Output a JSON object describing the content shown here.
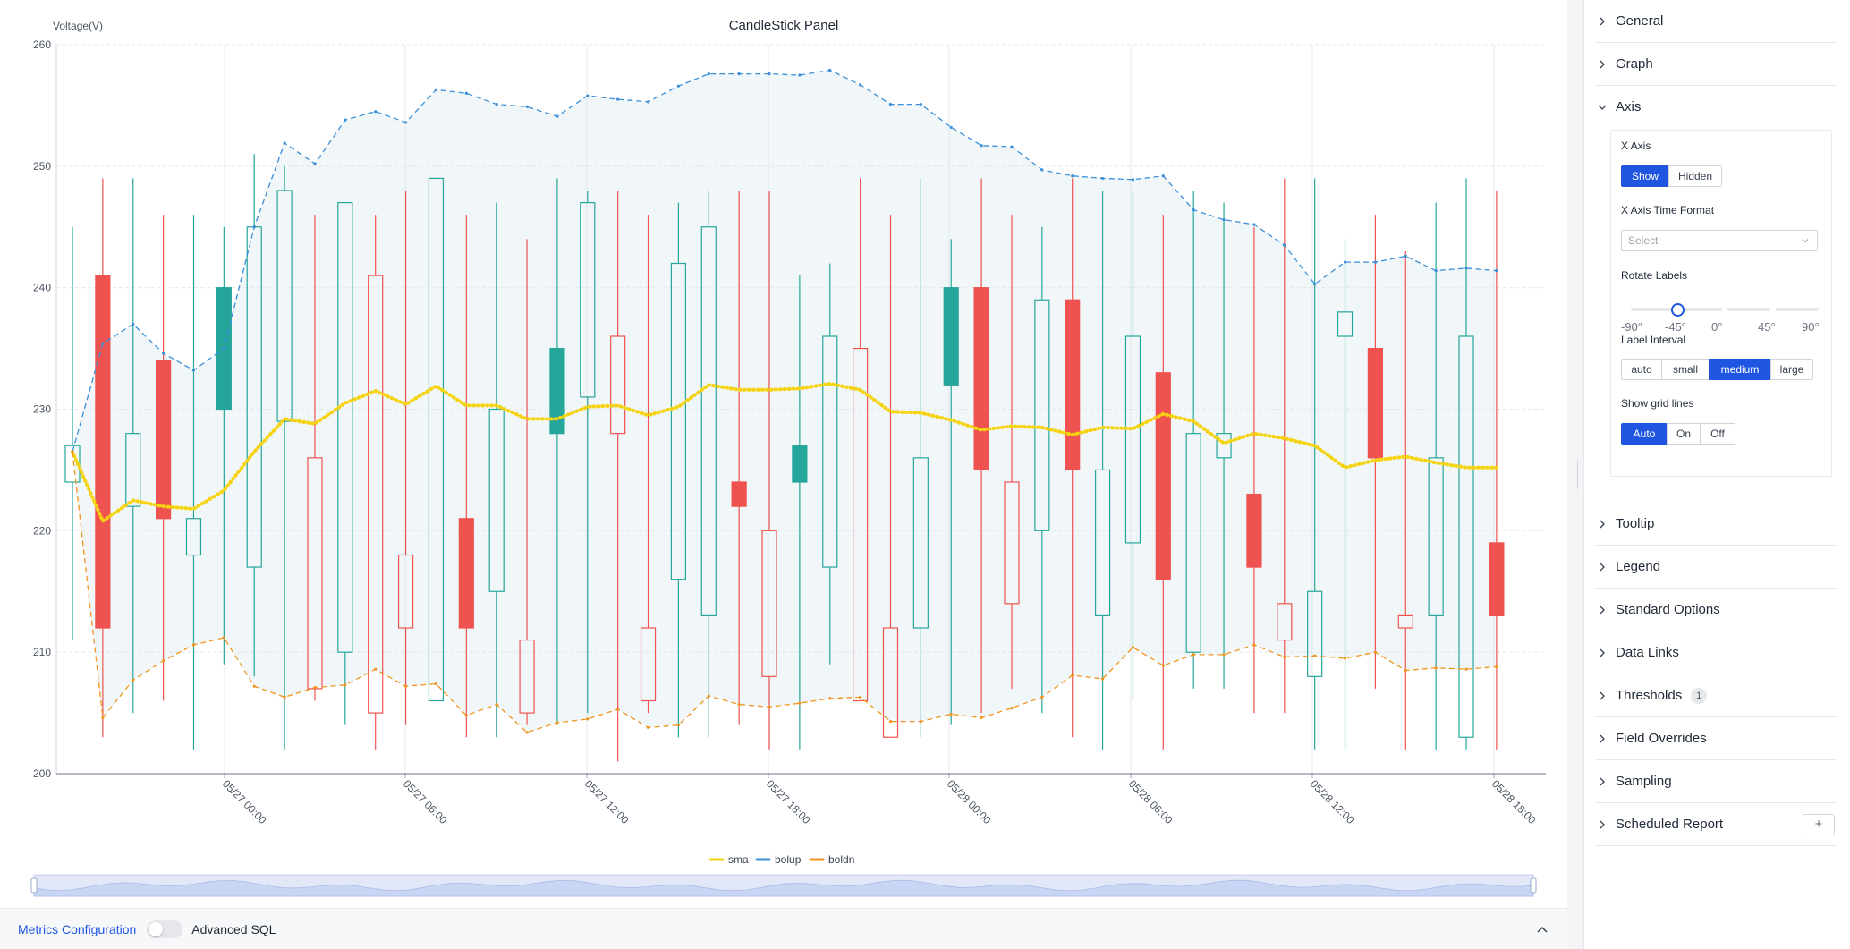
{
  "panel": {
    "title": "CandleStick Panel",
    "y_axis_label": "Voltage(V)"
  },
  "legend": [
    {
      "name": "sma",
      "color": "#f5d311"
    },
    {
      "name": "bolup",
      "color": "#3b8fd9"
    },
    {
      "name": "boldn",
      "color": "#f0951f"
    }
  ],
  "chart_data": {
    "type": "candlestick",
    "title": "CandleStick Panel",
    "ylabel": "Voltage(V)",
    "ylim": [
      200,
      260
    ],
    "yticks": [
      200,
      210,
      220,
      230,
      240,
      250,
      260
    ],
    "x_tick_labels": [
      "05/27 00:00",
      "05/27 06:00",
      "05/27 12:00",
      "05/27 18:00",
      "05/28 00:00",
      "05/28 06:00",
      "05/28 12:00",
      "05/28 18:00"
    ],
    "grid": true,
    "legend_position": "bottom-center",
    "up_color": "#26a69a",
    "down_color": "#ef5350",
    "candles": [
      {
        "o": 224,
        "c": 227,
        "h": 245,
        "l": 211
      },
      {
        "o": 241,
        "c": 212,
        "h": 249,
        "l": 203
      },
      {
        "o": 222,
        "c": 228,
        "h": 249,
        "l": 205
      },
      {
        "o": 234,
        "c": 221,
        "h": 246,
        "l": 206
      },
      {
        "o": 218,
        "c": 221,
        "h": 246,
        "l": 202
      },
      {
        "o": 230,
        "c": 240,
        "h": 245,
        "l": 209
      },
      {
        "o": 217,
        "c": 245,
        "h": 251,
        "l": 208
      },
      {
        "o": 229,
        "c": 248,
        "h": 250,
        "l": 202
      },
      {
        "o": 226,
        "c": 207,
        "h": 246,
        "l": 206
      },
      {
        "o": 210,
        "c": 247,
        "h": 247,
        "l": 204
      },
      {
        "o": 241,
        "c": 205,
        "h": 246,
        "l": 202
      },
      {
        "o": 218,
        "c": 212,
        "h": 248,
        "l": 204
      },
      {
        "o": 206,
        "c": 249,
        "h": 249,
        "l": 206
      },
      {
        "o": 221,
        "c": 212,
        "h": 246,
        "l": 203
      },
      {
        "o": 215,
        "c": 230,
        "h": 247,
        "l": 203
      },
      {
        "o": 211,
        "c": 205,
        "h": 244,
        "l": 204
      },
      {
        "o": 228,
        "c": 235,
        "h": 249,
        "l": 204
      },
      {
        "o": 231,
        "c": 247,
        "h": 248,
        "l": 205
      },
      {
        "o": 236,
        "c": 228,
        "h": 248,
        "l": 201
      },
      {
        "o": 212,
        "c": 206,
        "h": 246,
        "l": 205
      },
      {
        "o": 216,
        "c": 242,
        "h": 247,
        "l": 203
      },
      {
        "o": 213,
        "c": 245,
        "h": 248,
        "l": 203
      },
      {
        "o": 224,
        "c": 222,
        "h": 248,
        "l": 204
      },
      {
        "o": 220,
        "c": 208,
        "h": 248,
        "l": 202
      },
      {
        "o": 224,
        "c": 227,
        "h": 241,
        "l": 202
      },
      {
        "o": 217,
        "c": 236,
        "h": 242,
        "l": 209
      },
      {
        "o": 235,
        "c": 206,
        "h": 249,
        "l": 206
      },
      {
        "o": 212,
        "c": 203,
        "h": 246,
        "l": 203
      },
      {
        "o": 212,
        "c": 226,
        "h": 249,
        "l": 203
      },
      {
        "o": 232,
        "c": 240,
        "h": 244,
        "l": 204
      },
      {
        "o": 240,
        "c": 225,
        "h": 249,
        "l": 205
      },
      {
        "o": 224,
        "c": 214,
        "h": 246,
        "l": 207
      },
      {
        "o": 220,
        "c": 239,
        "h": 245,
        "l": 205
      },
      {
        "o": 239,
        "c": 225,
        "h": 249,
        "l": 203
      },
      {
        "o": 213,
        "c": 225,
        "h": 248,
        "l": 202
      },
      {
        "o": 219,
        "c": 236,
        "h": 248,
        "l": 206
      },
      {
        "o": 233,
        "c": 216,
        "h": 246,
        "l": 202
      },
      {
        "o": 210,
        "c": 228,
        "h": 248,
        "l": 207
      },
      {
        "o": 226,
        "c": 228,
        "h": 247,
        "l": 207
      },
      {
        "o": 223,
        "c": 217,
        "h": 245,
        "l": 205
      },
      {
        "o": 214,
        "c": 211,
        "h": 249,
        "l": 205
      },
      {
        "o": 208,
        "c": 215,
        "h": 249,
        "l": 202
      },
      {
        "o": 236,
        "c": 238,
        "h": 244,
        "l": 202
      },
      {
        "o": 235,
        "c": 226,
        "h": 246,
        "l": 207
      },
      {
        "o": 213,
        "c": 212,
        "h": 243,
        "l": 202
      },
      {
        "o": 213,
        "c": 226,
        "h": 247,
        "l": 202
      },
      {
        "o": 203,
        "c": 236,
        "h": 249,
        "l": 202
      },
      {
        "o": 219,
        "c": 213,
        "h": 248,
        "l": 202
      }
    ],
    "series": [
      {
        "name": "sma",
        "values": [
          226.5,
          220.8,
          222.5,
          222,
          221.8,
          223.3,
          226.5,
          229.2,
          228.8,
          230.5,
          231.5,
          230.4,
          231.9,
          230.3,
          230.3,
          229.2,
          229.2,
          230.2,
          230.3,
          229.5,
          230.2,
          232,
          231.6,
          231.6,
          231.7,
          232.1,
          231.6,
          229.8,
          229.7,
          229.1,
          228.3,
          228.6,
          228.5,
          227.9,
          228.5,
          228.4,
          229.6,
          229,
          227.2,
          228,
          227.6,
          227,
          225.2,
          225.8,
          226.1,
          225.6,
          225.2,
          225.2
        ]
      },
      {
        "name": "bolup",
        "values": [
          226.5,
          235.4,
          237,
          234.6,
          233.2,
          235,
          245,
          251.9,
          250.2,
          253.8,
          254.5,
          253.6,
          256.3,
          256,
          255.1,
          254.9,
          254.1,
          255.8,
          255.5,
          255.3,
          256.6,
          257.6,
          257.6,
          257.6,
          257.5,
          257.9,
          256.7,
          255.1,
          255.1,
          253.2,
          251.7,
          251.6,
          249.7,
          249.2,
          249,
          248.9,
          249.2,
          246.4,
          245.6,
          245.2,
          243.5,
          240.3,
          242.1,
          242.1,
          242.6,
          241.4,
          241.6,
          241.4
        ]
      },
      {
        "name": "boldn",
        "values": [
          226.5,
          204.6,
          207.7,
          209.3,
          210.6,
          211.2,
          207.2,
          206.3,
          207.1,
          207.3,
          208.6,
          207.2,
          207.4,
          204.8,
          205.7,
          203.4,
          204.2,
          204.5,
          205.3,
          203.8,
          204,
          206.4,
          205.7,
          205.5,
          205.8,
          206.2,
          206.3,
          204.3,
          204.3,
          204.9,
          204.6,
          205.4,
          206.3,
          208.1,
          207.8,
          210.4,
          208.9,
          209.8,
          209.8,
          210.6,
          209.6,
          209.7,
          209.5,
          210,
          208.5,
          208.7,
          208.6,
          208.8
        ]
      }
    ]
  },
  "bottom_bar": {
    "metrics_label": "Metrics Configuration",
    "advanced_sql_label": "Advanced SQL",
    "advanced_sql_enabled": false
  },
  "options": {
    "sections": [
      {
        "label": "General",
        "expanded": false
      },
      {
        "label": "Graph",
        "expanded": false
      },
      {
        "label": "Axis",
        "expanded": true
      },
      {
        "label": "Tooltip",
        "expanded": false
      },
      {
        "label": "Legend",
        "expanded": false
      },
      {
        "label": "Standard Options",
        "expanded": false
      },
      {
        "label": "Data Links",
        "expanded": false
      },
      {
        "label": "Thresholds",
        "expanded": false,
        "badge": "1"
      },
      {
        "label": "Field Overrides",
        "expanded": false
      },
      {
        "label": "Sampling",
        "expanded": false
      },
      {
        "label": "Scheduled Report",
        "expanded": false,
        "add_button": "+"
      }
    ],
    "axis": {
      "x_axis_label": "X Axis",
      "x_axis_options": [
        "Show",
        "Hidden"
      ],
      "x_axis_selected": "Show",
      "time_format_label": "X Axis Time Format",
      "time_format_placeholder": "Select",
      "rotate_label": "Rotate Labels",
      "rotate_marks": [
        "-90°",
        "-45°",
        "0°",
        "45°",
        "90°"
      ],
      "rotate_value": "-45°",
      "interval_label": "Label Interval",
      "interval_options": [
        "auto",
        "small",
        "medium",
        "large"
      ],
      "interval_selected": "medium",
      "grid_label": "Show grid lines",
      "grid_options": [
        "Auto",
        "On",
        "Off"
      ],
      "grid_selected": "Auto"
    }
  }
}
